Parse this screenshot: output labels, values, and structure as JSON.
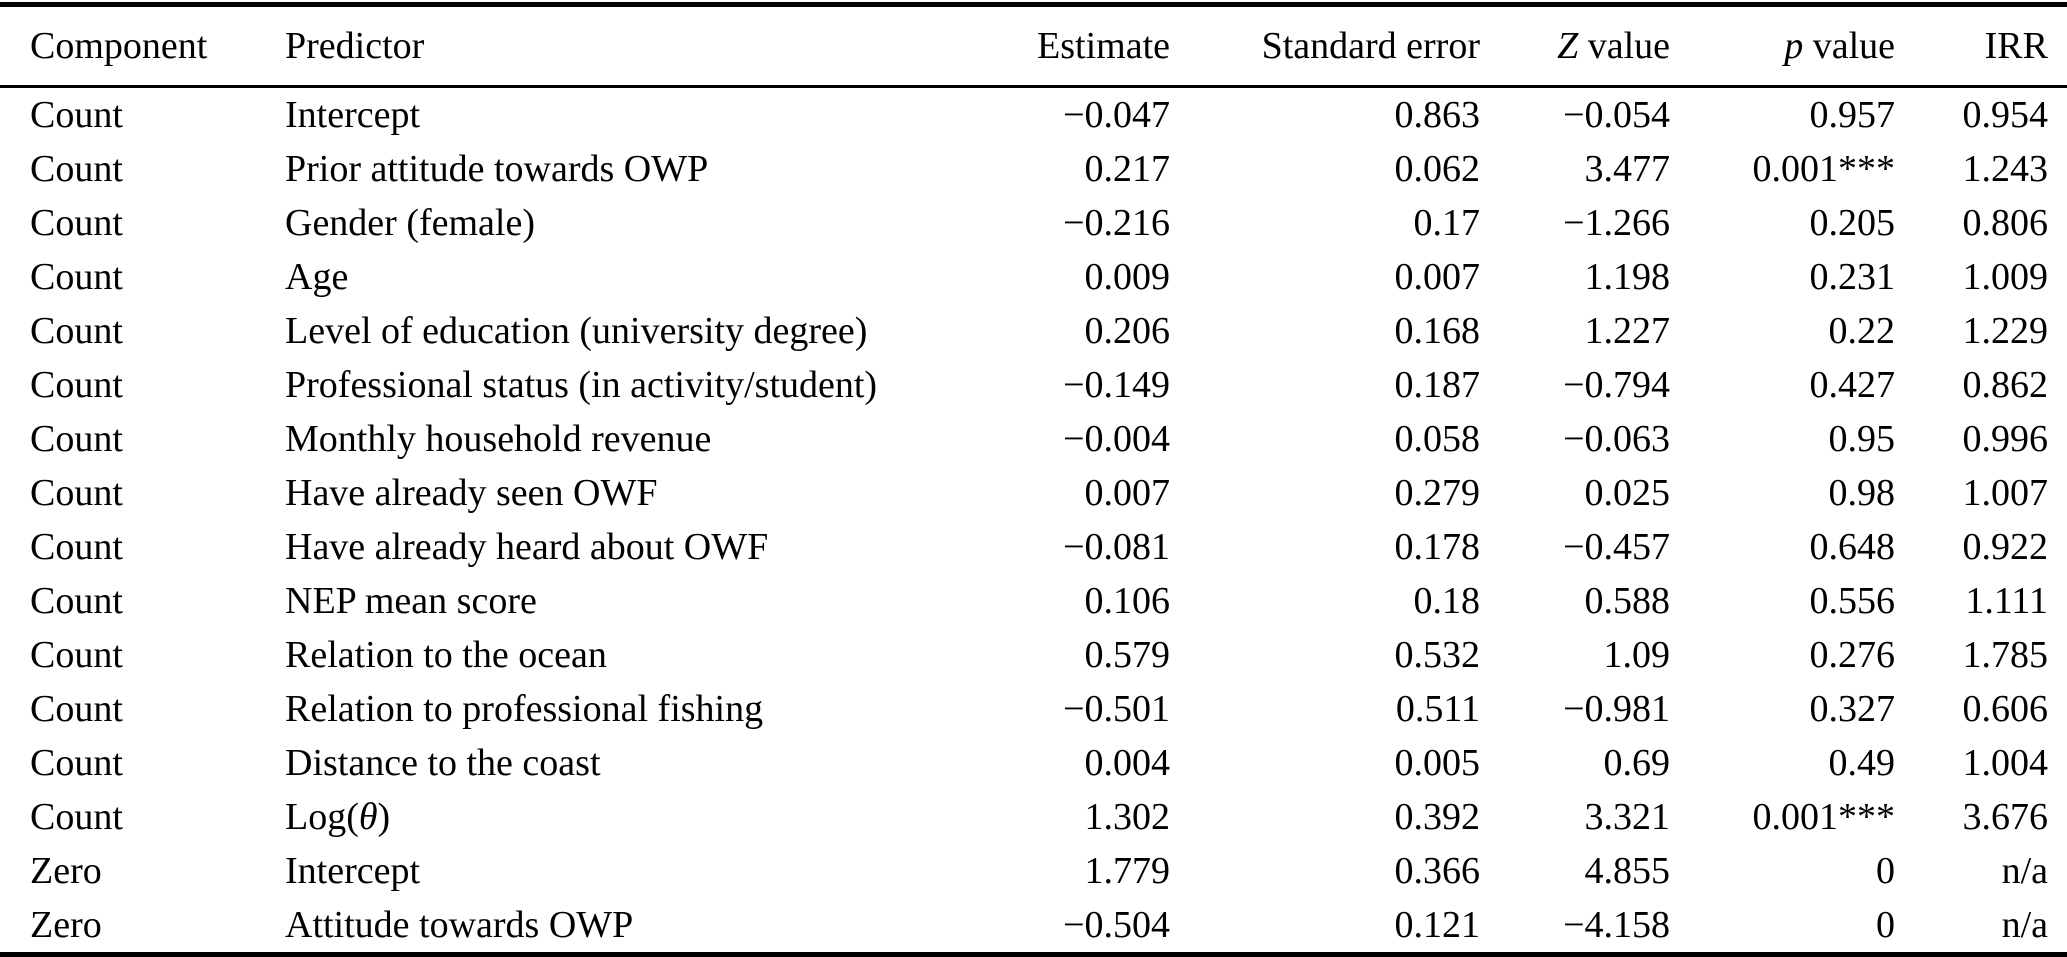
{
  "table": {
    "columns": [
      {
        "label": "Component"
      },
      {
        "label": "Predictor"
      },
      {
        "label": "Estimate"
      },
      {
        "label": "Standard error"
      },
      {
        "italic": "Z",
        "label": " value"
      },
      {
        "italic": "p",
        "label": " value"
      },
      {
        "label": "IRR"
      }
    ],
    "rows": [
      {
        "component": "Count",
        "predictor": "Intercept",
        "estimate": "−0.047",
        "standard_error": "0.863",
        "z_value": "−0.054",
        "p_value": "0.957",
        "irr": "0.954"
      },
      {
        "component": "Count",
        "predictor": "Prior attitude towards OWP",
        "estimate": "0.217",
        "standard_error": "0.062",
        "z_value": "3.477",
        "p_value": "0.001***",
        "irr": "1.243"
      },
      {
        "component": "Count",
        "predictor": "Gender (female)",
        "estimate": "−0.216",
        "standard_error": "0.17",
        "z_value": "−1.266",
        "p_value": "0.205",
        "irr": "0.806"
      },
      {
        "component": "Count",
        "predictor": "Age",
        "estimate": "0.009",
        "standard_error": "0.007",
        "z_value": "1.198",
        "p_value": "0.231",
        "irr": "1.009"
      },
      {
        "component": "Count",
        "predictor": "Level of education (university degree)",
        "estimate": "0.206",
        "standard_error": "0.168",
        "z_value": "1.227",
        "p_value": "0.22",
        "irr": "1.229"
      },
      {
        "component": "Count",
        "predictor": "Professional status (in activity/student)",
        "estimate": "−0.149",
        "standard_error": "0.187",
        "z_value": "−0.794",
        "p_value": "0.427",
        "irr": "0.862"
      },
      {
        "component": "Count",
        "predictor": "Monthly household revenue",
        "estimate": "−0.004",
        "standard_error": "0.058",
        "z_value": "−0.063",
        "p_value": "0.95",
        "irr": "0.996"
      },
      {
        "component": "Count",
        "predictor": "Have already seen OWF",
        "estimate": "0.007",
        "standard_error": "0.279",
        "z_value": "0.025",
        "p_value": "0.98",
        "irr": "1.007"
      },
      {
        "component": "Count",
        "predictor": "Have already heard about OWF",
        "estimate": "−0.081",
        "standard_error": "0.178",
        "z_value": "−0.457",
        "p_value": "0.648",
        "irr": "0.922"
      },
      {
        "component": "Count",
        "predictor": "NEP mean score",
        "estimate": "0.106",
        "standard_error": "0.18",
        "z_value": "0.588",
        "p_value": "0.556",
        "irr": "1.111"
      },
      {
        "component": "Count",
        "predictor": "Relation to the ocean",
        "estimate": "0.579",
        "standard_error": "0.532",
        "z_value": "1.09",
        "p_value": "0.276",
        "irr": "1.785"
      },
      {
        "component": "Count",
        "predictor": "Relation to professional fishing",
        "estimate": "−0.501",
        "standard_error": "0.511",
        "z_value": "−0.981",
        "p_value": "0.327",
        "irr": "0.606"
      },
      {
        "component": "Count",
        "predictor": "Distance to the coast",
        "estimate": "0.004",
        "standard_error": "0.005",
        "z_value": "0.69",
        "p_value": "0.49",
        "irr": "1.004"
      },
      {
        "component": "Count",
        "predictor": "Log(θ)",
        "estimate": "1.302",
        "standard_error": "0.392",
        "z_value": "3.321",
        "p_value": "0.001***",
        "irr": "3.676"
      },
      {
        "component": "Zero",
        "predictor": "Intercept",
        "estimate": "1.779",
        "standard_error": "0.366",
        "z_value": "4.855",
        "p_value": "0",
        "irr": "n/a"
      },
      {
        "component": "Zero",
        "predictor": "Attitude towards OWP",
        "estimate": "−0.504",
        "standard_error": "0.121",
        "z_value": "−4.158",
        "p_value": "0",
        "irr": "n/a"
      }
    ]
  }
}
